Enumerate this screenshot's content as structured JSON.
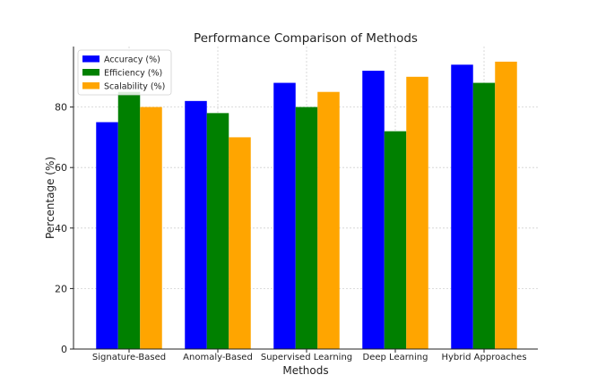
{
  "chart_data": {
    "type": "bar",
    "title": "Performance Comparison of Methods",
    "xlabel": "Methods",
    "ylabel": "Percentage (%)",
    "categories": [
      "Signature-Based",
      "Anomaly-Based",
      "Supervised Learning",
      "Deep Learning",
      "Hybrid Approaches"
    ],
    "series": [
      {
        "name": "Accuracy (%)",
        "color": "#0000ff",
        "values": [
          75,
          82,
          88,
          92,
          94
        ]
      },
      {
        "name": "Efficiency (%)",
        "color": "#008000",
        "values": [
          85,
          78,
          80,
          72,
          88
        ]
      },
      {
        "name": "Scalability (%)",
        "color": "#ffa500",
        "values": [
          80,
          70,
          85,
          90,
          95
        ]
      }
    ],
    "ylim": [
      0,
      100
    ],
    "yticks": [
      0,
      20,
      40,
      60,
      80
    ],
    "grid": true,
    "legend_position": "top-left"
  }
}
